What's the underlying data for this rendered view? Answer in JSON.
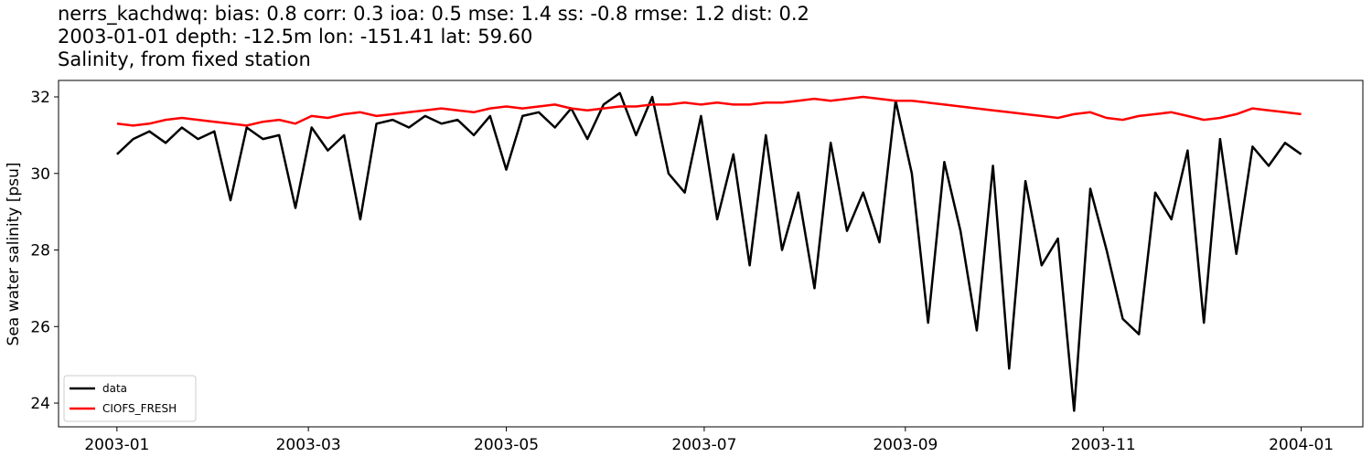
{
  "chart_data": {
    "type": "line",
    "title": [
      "nerrs_kachdwq: bias: 0.8  corr: 0.3  ioa: 0.5  mse: 1.4  ss: -0.8  rmse: 1.2  dist: 0.2",
      "2003-01-01 depth: -12.5m lon: -151.41 lat: 59.60",
      "Salinity, from fixed station"
    ],
    "ylabel": "Sea water salinity [psu]",
    "x": [
      "2003-01-01",
      "2003-01-06",
      "2003-01-11",
      "2003-01-16",
      "2003-01-21",
      "2003-01-26",
      "2003-01-31",
      "2003-02-05",
      "2003-02-10",
      "2003-02-15",
      "2003-02-20",
      "2003-02-25",
      "2003-03-02",
      "2003-03-07",
      "2003-03-12",
      "2003-03-17",
      "2003-03-22",
      "2003-03-27",
      "2003-04-01",
      "2003-04-06",
      "2003-04-11",
      "2003-04-16",
      "2003-04-21",
      "2003-04-26",
      "2003-05-01",
      "2003-05-06",
      "2003-05-11",
      "2003-05-16",
      "2003-05-21",
      "2003-05-26",
      "2003-05-31",
      "2003-06-05",
      "2003-06-10",
      "2003-06-15",
      "2003-06-20",
      "2003-06-25",
      "2003-06-30",
      "2003-07-05",
      "2003-07-10",
      "2003-07-15",
      "2003-07-20",
      "2003-07-25",
      "2003-07-30",
      "2003-08-04",
      "2003-08-09",
      "2003-08-14",
      "2003-08-19",
      "2003-08-24",
      "2003-08-29",
      "2003-09-03",
      "2003-09-08",
      "2003-09-13",
      "2003-09-18",
      "2003-09-23",
      "2003-09-28",
      "2003-10-03",
      "2003-10-08",
      "2003-10-13",
      "2003-10-18",
      "2003-10-23",
      "2003-10-28",
      "2003-11-02",
      "2003-11-07",
      "2003-11-12",
      "2003-11-17",
      "2003-11-22",
      "2003-11-27",
      "2003-12-02",
      "2003-12-07",
      "2003-12-12",
      "2003-12-17",
      "2003-12-22",
      "2003-12-27",
      "2004-01-01"
    ],
    "series": [
      {
        "name": "data",
        "color": "#000000",
        "values": [
          30.5,
          30.9,
          31.1,
          30.8,
          31.2,
          30.9,
          31.1,
          29.3,
          31.2,
          30.9,
          31.0,
          29.1,
          31.2,
          30.6,
          31.0,
          28.8,
          31.3,
          31.4,
          31.2,
          31.5,
          31.3,
          31.4,
          31.0,
          31.5,
          30.1,
          31.5,
          31.6,
          31.2,
          31.7,
          30.9,
          31.8,
          32.1,
          31.0,
          32.0,
          30.0,
          29.5,
          31.5,
          28.8,
          30.5,
          27.6,
          31.0,
          28.0,
          29.5,
          27.0,
          30.8,
          28.5,
          29.5,
          28.2,
          31.9,
          30.0,
          26.1,
          30.3,
          28.5,
          25.9,
          30.2,
          24.9,
          29.8,
          27.6,
          28.3,
          23.8,
          29.6,
          28.0,
          26.2,
          25.8,
          29.5,
          28.8,
          30.6,
          26.1,
          30.9,
          27.9,
          30.7,
          30.2,
          30.8,
          30.5
        ]
      },
      {
        "name": "CIOFS_FRESH",
        "color": "#ff0000",
        "values": [
          31.3,
          31.25,
          31.3,
          31.4,
          31.45,
          31.4,
          31.35,
          31.3,
          31.25,
          31.35,
          31.4,
          31.3,
          31.5,
          31.45,
          31.55,
          31.6,
          31.5,
          31.55,
          31.6,
          31.65,
          31.7,
          31.65,
          31.6,
          31.7,
          31.75,
          31.7,
          31.75,
          31.8,
          31.7,
          31.65,
          31.7,
          31.75,
          31.75,
          31.8,
          31.8,
          31.85,
          31.8,
          31.85,
          31.8,
          31.8,
          31.85,
          31.85,
          31.9,
          31.95,
          31.9,
          31.95,
          32.0,
          31.95,
          31.9,
          31.9,
          31.85,
          31.8,
          31.75,
          31.7,
          31.65,
          31.6,
          31.55,
          31.5,
          31.45,
          31.55,
          31.6,
          31.45,
          31.4,
          31.5,
          31.55,
          31.6,
          31.5,
          31.4,
          31.45,
          31.55,
          31.7,
          31.65,
          31.6,
          31.55
        ]
      }
    ],
    "xlim": [
      "2002-12-14",
      "2004-01-20"
    ],
    "xticks": [
      {
        "value": "2003-01-01",
        "label": "2003-01"
      },
      {
        "value": "2003-03-01",
        "label": "2003-03"
      },
      {
        "value": "2003-05-01",
        "label": "2003-05"
      },
      {
        "value": "2003-07-01",
        "label": "2003-07"
      },
      {
        "value": "2003-09-01",
        "label": "2003-09"
      },
      {
        "value": "2003-11-01",
        "label": "2003-11"
      },
      {
        "value": "2004-01-01",
        "label": "2004-01"
      }
    ],
    "ylim": [
      23.38,
      32.43
    ],
    "yticks": [
      24,
      26,
      28,
      30,
      32
    ],
    "grid": false,
    "legend": "lower left"
  }
}
